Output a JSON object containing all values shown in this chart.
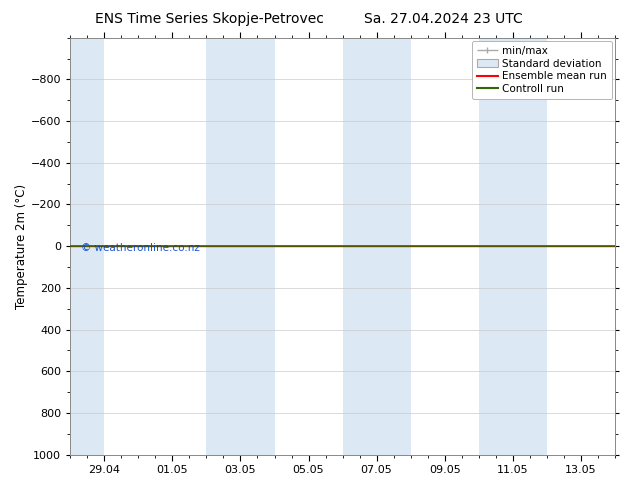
{
  "title_left": "ENS Time Series Skopje-Petrovec",
  "title_right": "Sa. 27.04.2024 23 UTC",
  "ylabel": "Temperature 2m (°C)",
  "watermark": "© weatheronline.co.nz",
  "ylim_bottom": 1000,
  "ylim_top": -1000,
  "yticks": [
    -800,
    -600,
    -400,
    -200,
    0,
    200,
    400,
    600,
    800,
    1000
  ],
  "x_tick_labels": [
    "29.04",
    "01.05",
    "03.05",
    "05.05",
    "07.05",
    "09.05",
    "11.05",
    "13.05"
  ],
  "x_tick_positions": [
    1,
    3,
    5,
    7,
    9,
    11,
    13,
    15
  ],
  "x_lim": [
    0,
    16
  ],
  "shaded_bands_x": [
    [
      0,
      1
    ],
    [
      4,
      6
    ],
    [
      8,
      10
    ],
    [
      12,
      14
    ]
  ],
  "shaded_color": "#dce9f5",
  "green_line_y": 0,
  "red_line_y": 0,
  "background_color": "#ffffff",
  "grid_color": "#cccccc",
  "legend_entries": [
    "min/max",
    "Standard deviation",
    "Ensemble mean run",
    "Controll run"
  ],
  "legend_colors_hex": [
    "#aaaaaa",
    "#dce9f5",
    "#ff0000",
    "#336600"
  ],
  "title_fontsize": 10,
  "label_fontsize": 8.5,
  "tick_fontsize": 8
}
